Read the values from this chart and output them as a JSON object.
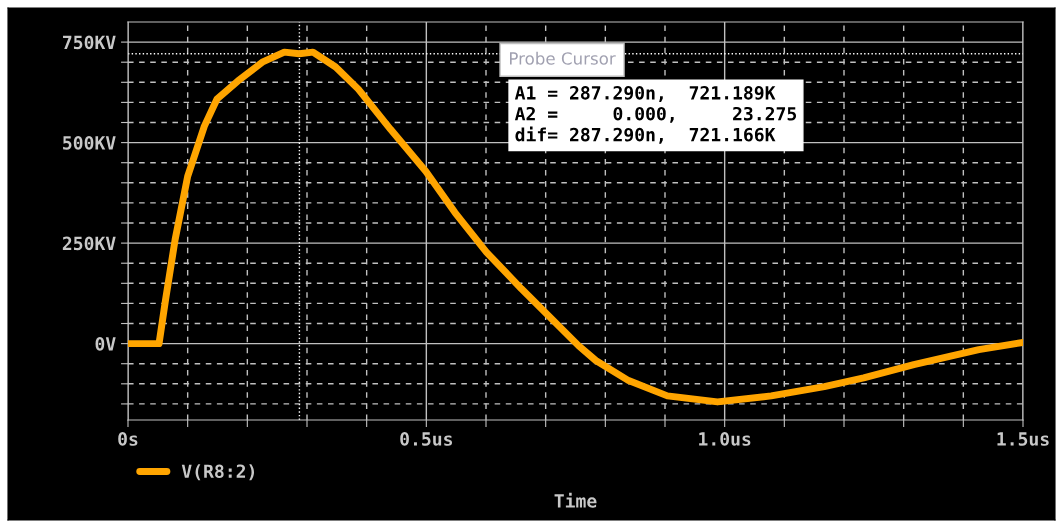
{
  "chart_data": {
    "type": "line",
    "xlabel": "Time",
    "x": [
      0,
      0.052,
      0.063,
      0.079,
      0.1,
      0.128,
      0.149,
      0.184,
      0.225,
      0.262,
      0.287,
      0.31,
      0.348,
      0.386,
      0.44,
      0.499,
      0.548,
      0.601,
      0.659,
      0.755,
      0.784,
      0.839,
      0.904,
      0.988,
      1.078,
      1.167,
      1.233,
      1.317,
      1.426,
      1.5
    ],
    "series": [
      {
        "name": "V(R8:2)",
        "color": "#ffa500",
        "values": [
          0,
          0,
          110,
          259,
          416,
          541,
          608,
          653,
          700,
          725,
          721,
          725,
          688,
          633,
          533,
          429,
          326,
          227,
          137,
          -5,
          -42,
          -92,
          -130,
          -145,
          -130,
          -107,
          -85,
          -52,
          -15,
          3
        ]
      }
    ],
    "xlim": [
      0,
      1.5
    ],
    "ylim": [
      -190,
      800
    ],
    "xticks": [
      {
        "value": 0,
        "label": "0s"
      },
      {
        "value": 0.1,
        "label": null
      },
      {
        "value": 0.2,
        "label": null
      },
      {
        "value": 0.3,
        "label": null
      },
      {
        "value": 0.4,
        "label": null
      },
      {
        "value": 0.5,
        "label": "0.5us"
      },
      {
        "value": 0.6,
        "label": null
      },
      {
        "value": 0.7,
        "label": null
      },
      {
        "value": 0.8,
        "label": null
      },
      {
        "value": 0.9,
        "label": null
      },
      {
        "value": 1.0,
        "label": "1.0us"
      },
      {
        "value": 1.1,
        "label": null
      },
      {
        "value": 1.2,
        "label": null
      },
      {
        "value": 1.3,
        "label": null
      },
      {
        "value": 1.4,
        "label": null
      },
      {
        "value": 1.5,
        "label": "1.5us"
      }
    ],
    "yticks": [
      {
        "value": -150,
        "label": null
      },
      {
        "value": -100,
        "label": null
      },
      {
        "value": -50,
        "label": null
      },
      {
        "value": 0,
        "label": "0V"
      },
      {
        "value": 50,
        "label": null
      },
      {
        "value": 100,
        "label": null
      },
      {
        "value": 150,
        "label": null
      },
      {
        "value": 200,
        "label": null
      },
      {
        "value": 250,
        "label": "250KV"
      },
      {
        "value": 300,
        "label": null
      },
      {
        "value": 350,
        "label": null
      },
      {
        "value": 400,
        "label": null
      },
      {
        "value": 450,
        "label": null
      },
      {
        "value": 500,
        "label": "500KV"
      },
      {
        "value": 550,
        "label": null
      },
      {
        "value": 600,
        "label": null
      },
      {
        "value": 650,
        "label": null
      },
      {
        "value": 700,
        "label": null
      },
      {
        "value": 750,
        "label": "750KV"
      }
    ],
    "ref_lines": [
      {
        "axis": "x",
        "value": 0.28729,
        "color": "#ffffff",
        "line_style": "dotted"
      },
      {
        "axis": "y",
        "value": 721.189,
        "color": "#ffffff",
        "line_style": "dotted"
      }
    ],
    "annotations": [
      "Probe Cursor",
      "A1 = 287.290n,  721.189K",
      "A2 =     0.000,     23.275",
      "dif= 287.290n,  721.166K"
    ],
    "grid": true,
    "legend": "bottom left",
    "line_style": "solid"
  }
}
